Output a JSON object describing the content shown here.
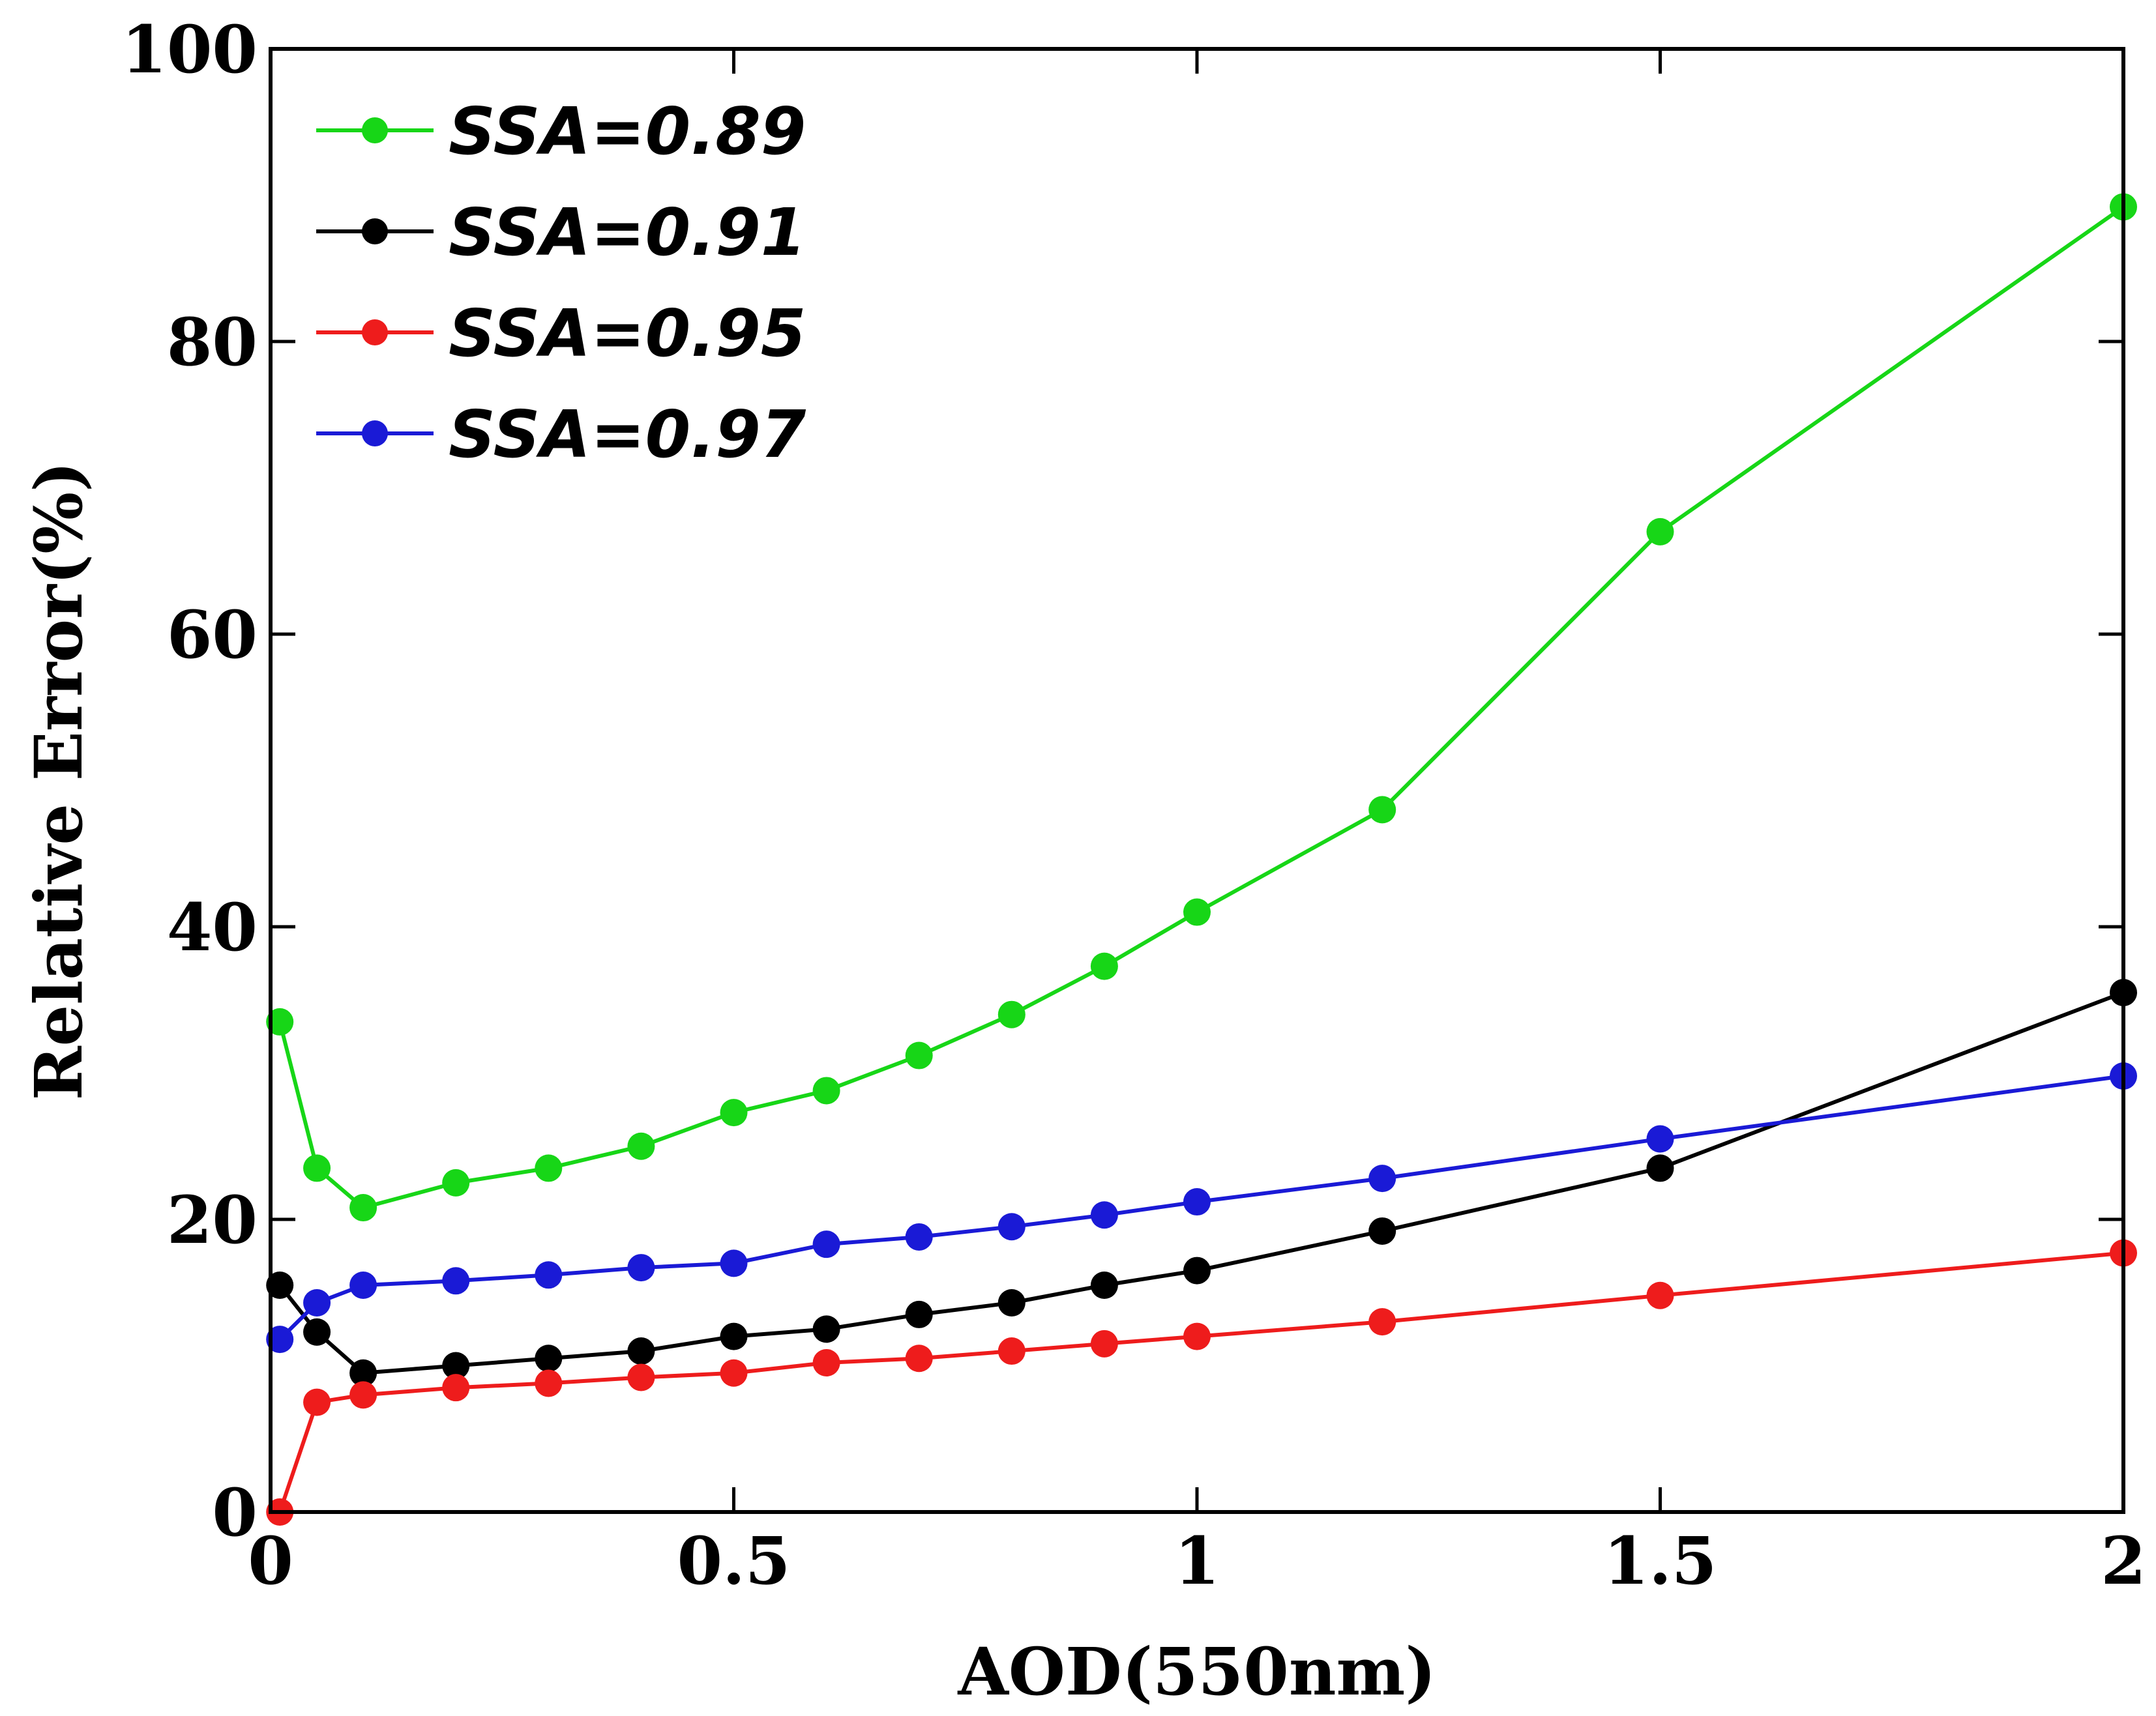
{
  "chart_data": {
    "type": "line",
    "title": "",
    "xlabel": "AOD(550nm)",
    "ylabel": "Relative Error(%)",
    "xlim": [
      0,
      2
    ],
    "ylim": [
      0,
      100
    ],
    "xticks": [
      0,
      0.5,
      1,
      1.5,
      2
    ],
    "xtick_labels": [
      "0",
      "0.5",
      "1",
      "1.5",
      "2"
    ],
    "yticks": [
      0,
      20,
      40,
      60,
      80,
      100
    ],
    "ytick_labels": [
      "0",
      "20",
      "40",
      "60",
      "80",
      "100"
    ],
    "grid": false,
    "legend_position": "top-left",
    "series": [
      {
        "name": "SSA=0.89",
        "color": "#17d617",
        "x": [
          0.01,
          0.05,
          0.1,
          0.2,
          0.3,
          0.4,
          0.5,
          0.6,
          0.7,
          0.8,
          0.9,
          1.0,
          1.2,
          1.5,
          2.0
        ],
        "y": [
          33.5,
          23.5,
          20.8,
          22.5,
          23.5,
          25.0,
          27.3,
          28.8,
          31.2,
          34.0,
          37.3,
          41.0,
          48.0,
          67.0,
          89.2
        ]
      },
      {
        "name": "SSA=0.91",
        "color": "#000000",
        "x": [
          0.01,
          0.05,
          0.1,
          0.2,
          0.3,
          0.4,
          0.5,
          0.6,
          0.7,
          0.8,
          0.9,
          1.0,
          1.2,
          1.5,
          2.0
        ],
        "y": [
          15.5,
          12.3,
          9.5,
          10.0,
          10.5,
          11.0,
          12.0,
          12.5,
          13.5,
          14.3,
          15.5,
          16.5,
          19.2,
          23.5,
          35.5
        ]
      },
      {
        "name": "SSA=0.95",
        "color": "#ee1c1c",
        "x": [
          0.01,
          0.05,
          0.1,
          0.2,
          0.3,
          0.4,
          0.5,
          0.6,
          0.7,
          0.8,
          0.9,
          1.0,
          1.2,
          1.5,
          2.0
        ],
        "y": [
          0.0,
          7.5,
          8.0,
          8.5,
          8.8,
          9.2,
          9.5,
          10.2,
          10.5,
          11.0,
          11.5,
          12.0,
          13.0,
          14.8,
          17.7
        ]
      },
      {
        "name": "SSA=0.97",
        "color": "#1a1ad6",
        "x": [
          0.01,
          0.05,
          0.1,
          0.2,
          0.3,
          0.4,
          0.5,
          0.6,
          0.7,
          0.8,
          0.9,
          1.0,
          1.2,
          1.5,
          2.0
        ],
        "y": [
          11.8,
          14.3,
          15.5,
          15.8,
          16.2,
          16.7,
          17.0,
          18.3,
          18.8,
          19.5,
          20.3,
          21.2,
          22.8,
          25.5,
          29.8
        ]
      }
    ]
  }
}
